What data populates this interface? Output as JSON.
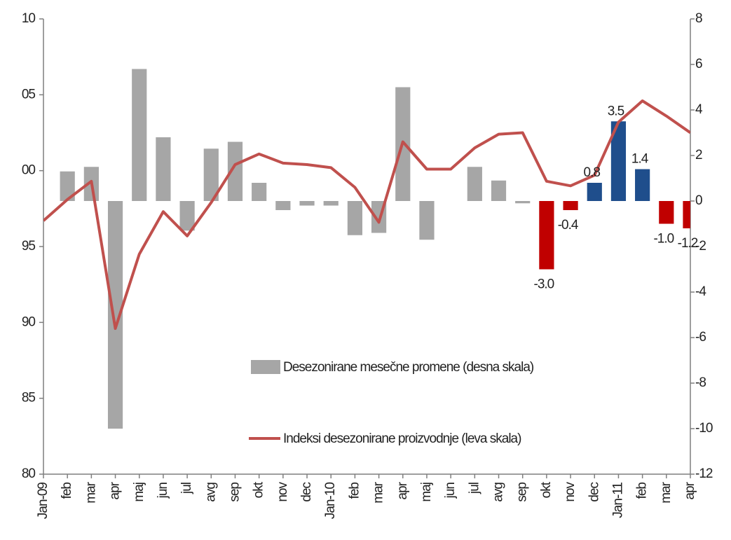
{
  "chart_data": {
    "type": "bar_line",
    "categories": [
      "Jan-09",
      "feb",
      "mar",
      "apr",
      "maj",
      "jun",
      "jul",
      "avg",
      "sep",
      "okt",
      "nov",
      "dec",
      "Jan-10",
      "feb",
      "mar",
      "apr",
      "maj",
      "jun",
      "jul",
      "avg",
      "sep",
      "okt",
      "nov",
      "dec",
      "Jan-11",
      "feb",
      "mar",
      "apr"
    ],
    "series": [
      {
        "name": "Desezonirane mesečne promene (desna skala)",
        "type": "bar",
        "axis": "y2",
        "color": "#a6a6a6",
        "colors": [
          "#a6a6a6",
          "#a6a6a6",
          "#a6a6a6",
          "#a6a6a6",
          "#a6a6a6",
          "#a6a6a6",
          "#a6a6a6",
          "#a6a6a6",
          "#a6a6a6",
          "#a6a6a6",
          "#a6a6a6",
          "#a6a6a6",
          "#a6a6a6",
          "#a6a6a6",
          "#a6a6a6",
          "#a6a6a6",
          "#a6a6a6",
          "#a6a6a6",
          "#a6a6a6",
          "#a6a6a6",
          "#a6a6a6",
          "#c00000",
          "#c00000",
          "#1f4e8c",
          "#1f4e8c",
          "#1f4e8c",
          "#c00000",
          "#c00000"
        ],
        "values": [
          null,
          1.3,
          1.5,
          -10.0,
          5.8,
          2.8,
          -1.3,
          2.3,
          2.6,
          0.8,
          -0.4,
          -0.2,
          -0.2,
          -1.5,
          -1.4,
          5.0,
          -1.7,
          null,
          1.5,
          0.9,
          -0.1,
          -3.0,
          -0.4,
          0.8,
          3.5,
          1.4,
          -1.0,
          -1.2
        ],
        "value_labels": [
          null,
          null,
          null,
          null,
          null,
          null,
          null,
          null,
          null,
          null,
          null,
          null,
          null,
          null,
          null,
          null,
          null,
          null,
          null,
          null,
          null,
          "-3.0",
          "-0.4",
          "0.8",
          "3.5",
          "1.4",
          "-1.0",
          "-1.2"
        ]
      },
      {
        "name": "Indeksi desezonirane proizvodnje (leva skala)",
        "type": "line",
        "color": "#c0504d",
        "values": [
          96.7,
          98.1,
          99.3,
          89.6,
          94.5,
          97.3,
          95.7,
          97.9,
          100.4,
          101.1,
          100.5,
          100.4,
          100.2,
          98.9,
          96.6,
          101.9,
          100.1,
          100.1,
          101.5,
          102.4,
          102.5,
          99.3,
          99.0,
          99.7,
          103.2,
          104.6,
          103.6,
          102.5
        ]
      }
    ],
    "ylim": [
      80,
      110
    ],
    "yticks": [
      80,
      85,
      90,
      95,
      {
        "value": 100,
        "label": "00"
      },
      {
        "value": 105,
        "label": "05"
      },
      {
        "value": 110,
        "label": "10"
      }
    ],
    "y2lim": [
      -12,
      8
    ],
    "y2ticks": [
      -12,
      -10,
      -8,
      -6,
      -4,
      -2,
      0,
      2,
      4,
      6,
      8
    ],
    "grid": false,
    "legend": "inside"
  }
}
